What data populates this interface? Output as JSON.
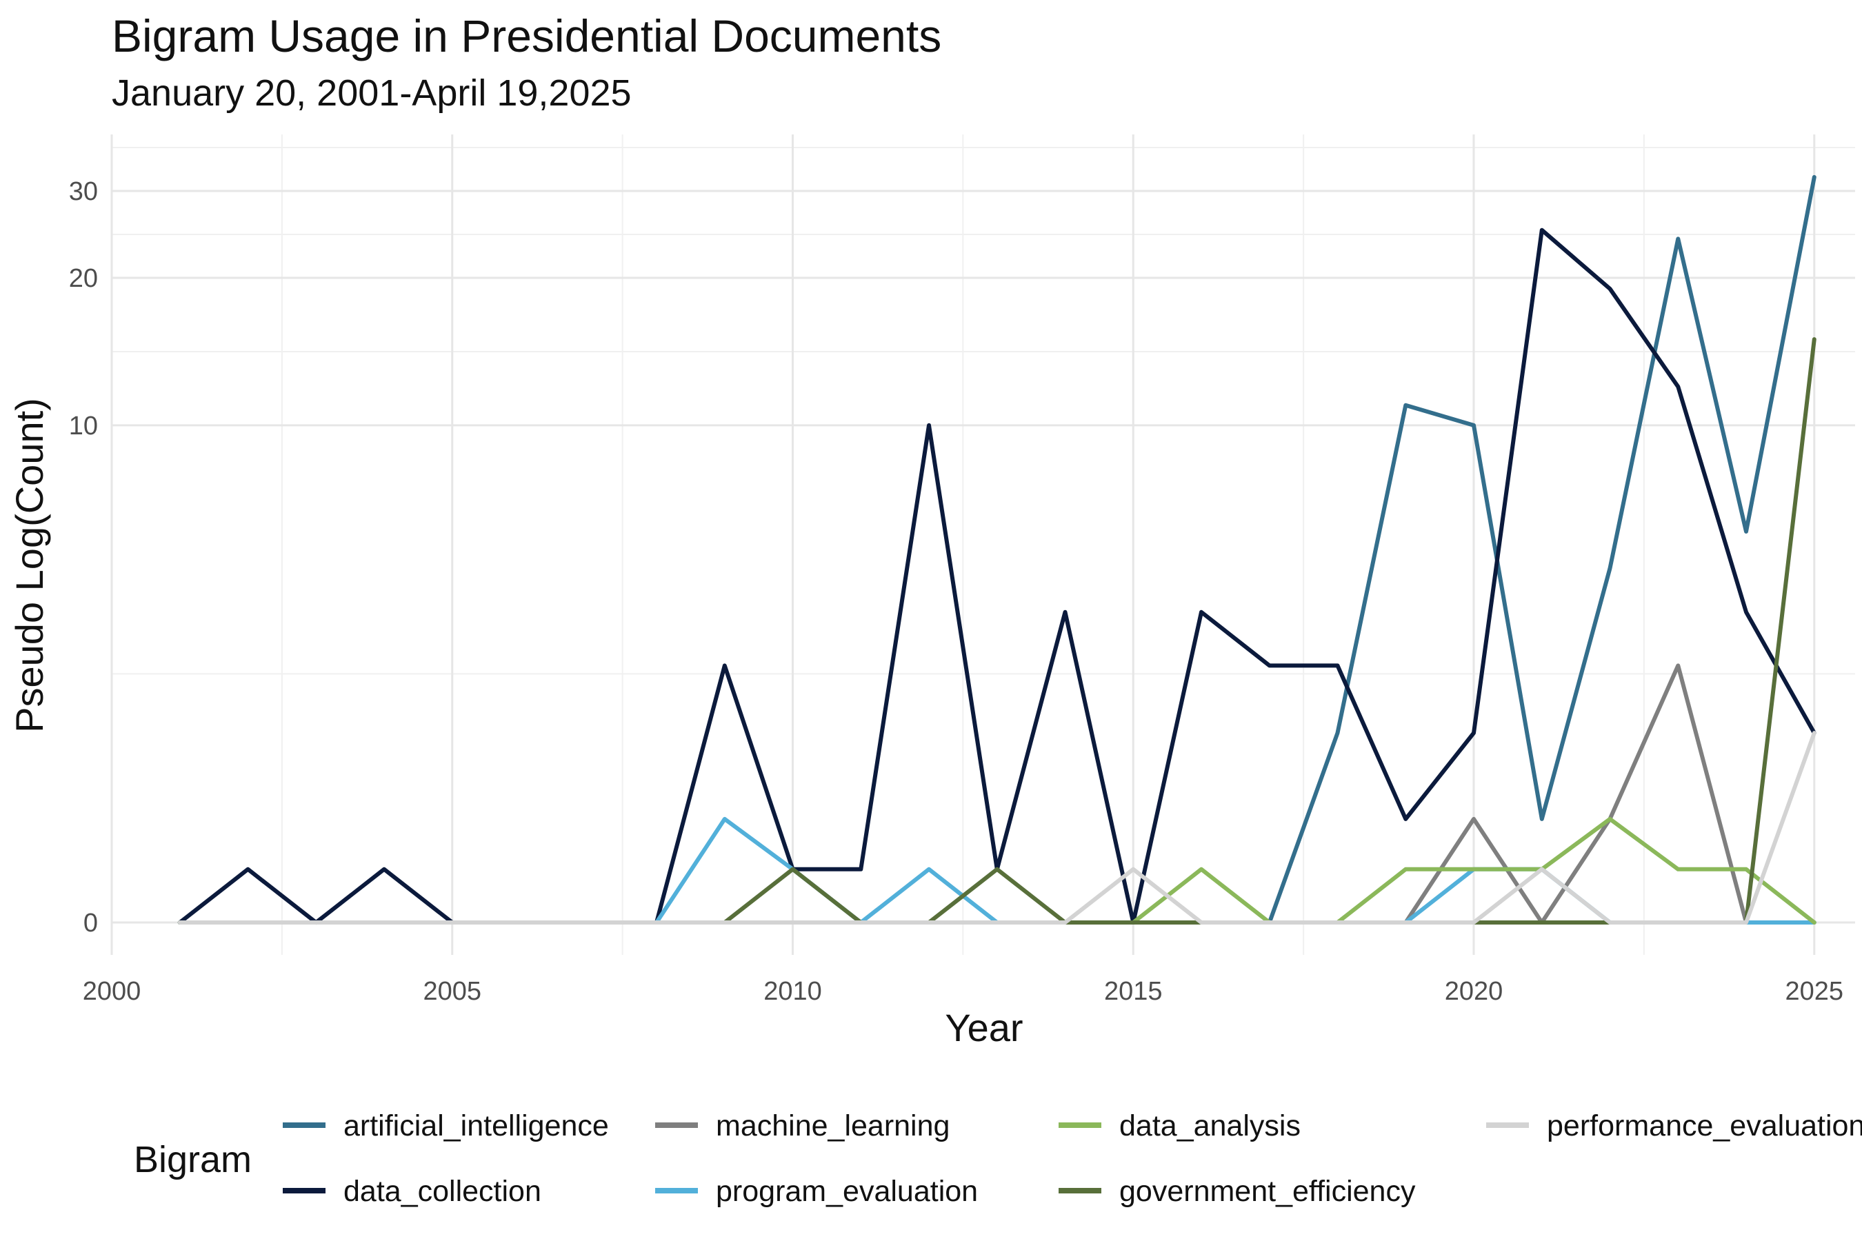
{
  "chart_data": {
    "type": "line",
    "title": "Bigram Usage in Presidential Documents",
    "subtitle": "January 20, 2001-April 19,2025",
    "xlabel": "Year",
    "ylabel": "Pseudo Log(Count)",
    "y_scale": "pseudo_log",
    "xlim": [
      2000,
      2025.6
    ],
    "ylim": [
      0,
      35
    ],
    "x_ticks": [
      2000,
      2005,
      2010,
      2015,
      2020,
      2025
    ],
    "y_ticks": [
      0,
      10,
      20,
      30
    ],
    "grid": true,
    "legend_title": "Bigram",
    "legend_position": "bottom",
    "x": [
      2001,
      2002,
      2003,
      2004,
      2005,
      2006,
      2007,
      2008,
      2009,
      2010,
      2011,
      2012,
      2013,
      2014,
      2015,
      2016,
      2017,
      2018,
      2019,
      2020,
      2021,
      2022,
      2023,
      2024,
      2025
    ],
    "series": [
      {
        "name": "artificial_intelligence",
        "color": "#336e8c",
        "values": [
          0,
          0,
          0,
          0,
          0,
          0,
          0,
          0,
          0,
          0,
          0,
          0,
          0,
          0,
          0,
          0,
          0,
          2,
          11,
          10,
          1,
          5,
          24,
          6,
          32
        ]
      },
      {
        "name": "data_collection",
        "color": "#0b1a3c",
        "values": [
          0,
          0.5,
          0,
          0.5,
          0,
          0,
          0,
          0,
          3,
          0.5,
          0.5,
          10,
          0.5,
          4,
          0,
          4,
          3,
          3,
          1,
          2,
          25,
          19,
          12,
          4,
          2
        ]
      },
      {
        "name": "machine_learning",
        "color": "#7f7f7f",
        "values": [
          0,
          0,
          0,
          0,
          0,
          0,
          0,
          0,
          0,
          0,
          0,
          0,
          0,
          0,
          0,
          0,
          0,
          0,
          0,
          1,
          0,
          1,
          3,
          0,
          0
        ]
      },
      {
        "name": "program_evaluation",
        "color": "#52b0da",
        "values": [
          0,
          0,
          0,
          0,
          0,
          0,
          0,
          0,
          1,
          0.5,
          0,
          0.5,
          0,
          0,
          0,
          0,
          0,
          0,
          0,
          0.5,
          0.5,
          0,
          0,
          0,
          0
        ]
      },
      {
        "name": "data_analysis",
        "color": "#8bb85a",
        "values": [
          0,
          0,
          0,
          0,
          0,
          0,
          0,
          0,
          0,
          0,
          0,
          0,
          0,
          0,
          0,
          0.5,
          0,
          0,
          0.5,
          0.5,
          0.5,
          1,
          0.5,
          0.5,
          0
        ]
      },
      {
        "name": "government_efficiency",
        "color": "#586f3a",
        "values": [
          0,
          0,
          0,
          0,
          0,
          0,
          0,
          0,
          0,
          0.5,
          0,
          0,
          0.5,
          0,
          0,
          0,
          0,
          0,
          0,
          0,
          0,
          0,
          0,
          0,
          15
        ]
      },
      {
        "name": "performance_evaluation",
        "color": "#d3d3d3",
        "values": [
          0,
          0,
          0,
          0,
          0,
          0,
          0,
          0,
          0,
          0,
          0,
          0,
          0,
          0,
          0.5,
          0,
          0,
          0,
          0,
          0,
          0.5,
          0,
          0,
          0,
          2
        ]
      }
    ]
  }
}
